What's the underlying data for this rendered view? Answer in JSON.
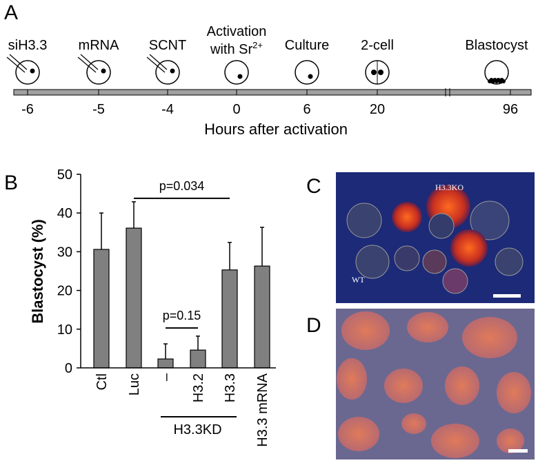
{
  "panel_a": {
    "label": "A",
    "stages": [
      {
        "label": "siH3.3",
        "tick": "-6"
      },
      {
        "label": "mRNA",
        "tick": "-5"
      },
      {
        "label": "SCNT",
        "tick": "-4"
      },
      {
        "label": "Activation",
        "label2": "with Sr",
        "superscript": "2+",
        "tick": "0"
      },
      {
        "label": "Culture",
        "tick": "6"
      },
      {
        "label": "2-cell",
        "tick": "20"
      },
      {
        "label": "Blastocyst",
        "tick": "96"
      }
    ],
    "axis_label": "Hours after activation"
  },
  "chart_data": {
    "type": "bar",
    "panel_label": "B",
    "ylabel": "Blastocyst (%)",
    "categories": [
      "Ctl",
      "Luc",
      "–",
      "H3.2",
      "H3.3",
      "H3.3 mRNA"
    ],
    "values": [
      30.6,
      36.1,
      2.3,
      4.6,
      25.3,
      26.3
    ],
    "errors": [
      9.4,
      6.8,
      3.9,
      3.6,
      7.1,
      10.0
    ],
    "color": "#808080",
    "ylim": [
      0,
      50
    ],
    "yticks": [
      0,
      10,
      20,
      30,
      40,
      50
    ],
    "annotations": [
      {
        "text": "p=0.034",
        "from": 1,
        "to": 4,
        "y": 43.8
      },
      {
        "text": "p=0.15",
        "from": 2,
        "to": 3,
        "y": 10.3
      }
    ],
    "group_label": {
      "text": "H3.3KD",
      "from": 2,
      "to": 4
    }
  },
  "panel_c": {
    "label": "C",
    "labels": [
      "H3.3KO",
      "WT"
    ]
  },
  "panel_d": {
    "label": "D"
  }
}
